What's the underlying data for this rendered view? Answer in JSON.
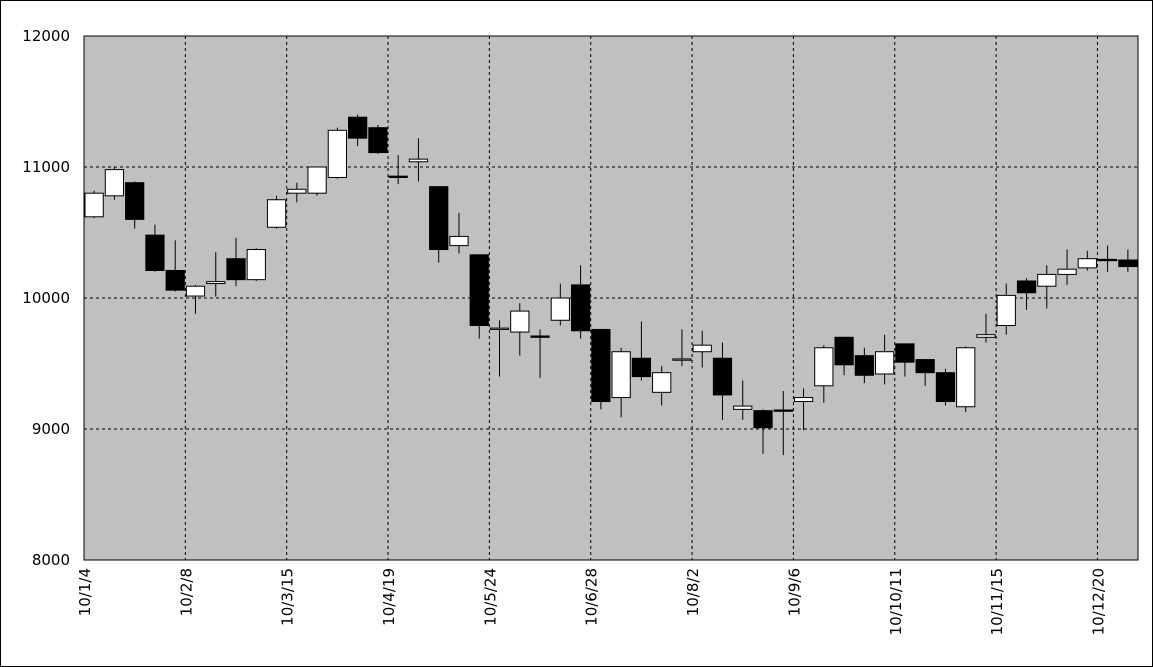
{
  "chart_data": {
    "type": "candlestick",
    "categories": [
      "10/1/4",
      null,
      null,
      null,
      null,
      "10/2/8",
      null,
      null,
      null,
      null,
      "10/3/15",
      null,
      null,
      null,
      null,
      "10/4/19",
      null,
      null,
      null,
      null,
      "10/5/24",
      null,
      null,
      null,
      null,
      "10/6/28",
      null,
      null,
      null,
      null,
      "10/8/2",
      null,
      null,
      null,
      null,
      "10/9/6",
      null,
      null,
      null,
      null,
      "10/10/11",
      null,
      null,
      null,
      null,
      "10/11/15",
      null,
      null,
      null,
      null,
      "10/12/20",
      null
    ],
    "open": [
      10620,
      10780,
      10880,
      10480,
      10210,
      10015,
      10110,
      10300,
      10140,
      10540,
      10800,
      10800,
      10920,
      11380,
      11300,
      10930,
      11040,
      10850,
      10400,
      10330,
      9760,
      9740,
      9710,
      9830,
      10100,
      9760,
      9240,
      9540,
      9280,
      9525,
      9590,
      9540,
      9150,
      9140,
      9145,
      9210,
      9330,
      9700,
      9560,
      9420,
      9650,
      9530,
      9430,
      9170,
      9700,
      9790,
      10130,
      10090,
      10180,
      10230,
      10295,
      10290
    ],
    "high": [
      10820,
      11000,
      10890,
      10560,
      10440,
      10100,
      10350,
      10460,
      10380,
      10780,
      10880,
      11000,
      11300,
      11400,
      11320,
      11090,
      11220,
      10850,
      10650,
      10330,
      9830,
      9960,
      9760,
      10110,
      10250,
      9760,
      9620,
      9820,
      9480,
      9760,
      9750,
      9660,
      9370,
      9150,
      9290,
      9310,
      9640,
      9700,
      9620,
      9720,
      9650,
      9530,
      9460,
      9630,
      9880,
      10110,
      10150,
      10250,
      10370,
      10360,
      10400,
      10370
    ],
    "low": [
      10610,
      10750,
      10530,
      10200,
      10050,
      9880,
      10010,
      10090,
      10130,
      10530,
      10730,
      10780,
      10910,
      11160,
      11100,
      10870,
      10890,
      10270,
      10340,
      9690,
      9400,
      9560,
      9390,
      9790,
      9690,
      9150,
      9090,
      9370,
      9180,
      9480,
      9470,
      9070,
      9070,
      8810,
      8800,
      8990,
      9200,
      9410,
      9350,
      9340,
      9400,
      9330,
      9180,
      9130,
      9660,
      9720,
      9910,
      9920,
      10100,
      10210,
      10200,
      10200
    ],
    "close": [
      10800,
      10980,
      10600,
      10210,
      10060,
      10090,
      10125,
      10140,
      10370,
      10750,
      10830,
      11000,
      11280,
      11220,
      11110,
      10920,
      11060,
      10370,
      10470,
      9790,
      9770,
      9900,
      9700,
      10000,
      9750,
      9210,
      9590,
      9400,
      9430,
      9535,
      9640,
      9260,
      9175,
      9010,
      9135,
      9240,
      9620,
      9490,
      9410,
      9590,
      9510,
      9430,
      9210,
      9620,
      9720,
      10020,
      10040,
      10180,
      10220,
      10300,
      10285,
      10240
    ],
    "up_color": "#ffffff",
    "down_color": "#000000",
    "background": "#c0c0c0",
    "ylim": [
      8000,
      12000
    ],
    "yticks": [
      8000,
      9000,
      10000,
      11000,
      12000
    ],
    "grid": true
  }
}
